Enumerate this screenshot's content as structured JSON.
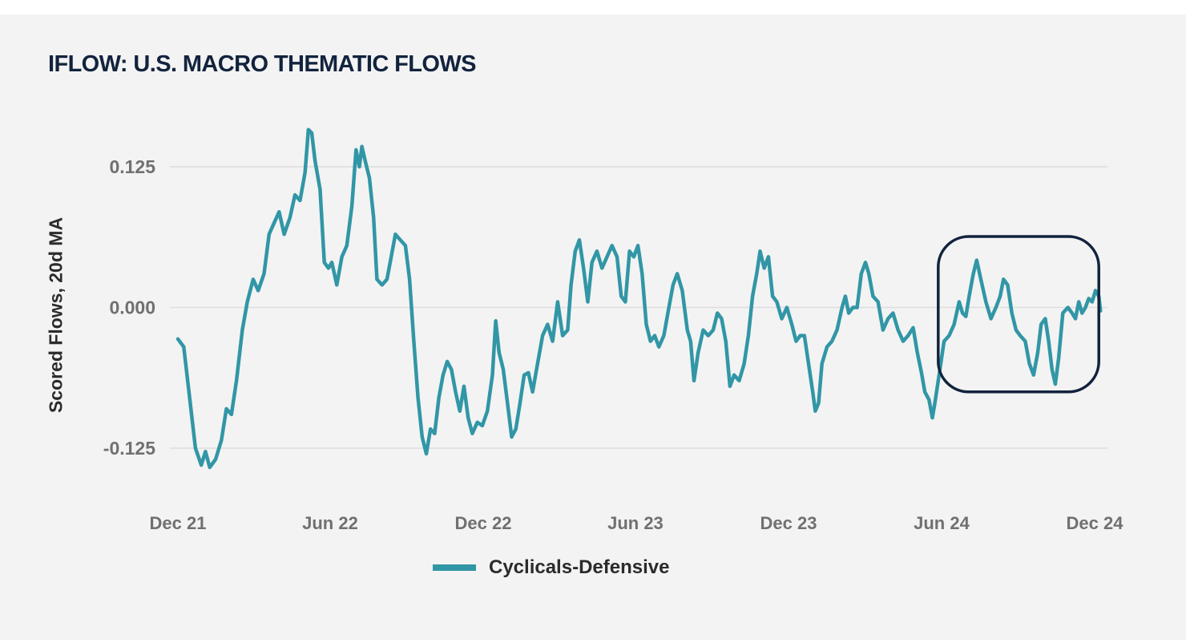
{
  "chart_data": {
    "type": "line",
    "title": "IFLOW: U.S. MACRO THEMATIC FLOWS",
    "ylabel": "Scored Flows, 20d MA",
    "xlabel": "",
    "ylim": [
      -0.16,
      0.16
    ],
    "yticks": [
      0.125,
      0.0,
      -0.125
    ],
    "ytick_labels": [
      "0.125",
      "0.000",
      "-0.125"
    ],
    "xticks": [
      {
        "date": "2021-12-01",
        "label": "Dec 21"
      },
      {
        "date": "2022-06-01",
        "label": "Jun 22"
      },
      {
        "date": "2022-12-01",
        "label": "Dec 22"
      },
      {
        "date": "2023-06-01",
        "label": "Jun 23"
      },
      {
        "date": "2023-12-01",
        "label": "Dec 23"
      },
      {
        "date": "2024-06-01",
        "label": "Jun 24"
      },
      {
        "date": "2024-12-01",
        "label": "Dec 24"
      }
    ],
    "grid": true,
    "legend_position": "bottom",
    "highlight": {
      "x_range": [
        "2024-05-28",
        "2024-12-06"
      ],
      "y_range": [
        -0.075,
        0.063
      ]
    },
    "colors": {
      "series": "#3196a6",
      "highlight": "#12233d",
      "grid": "#dddddd"
    },
    "series": [
      {
        "name": "Cyclicals-Defensive",
        "points": [
          [
            "2021-12-01",
            -0.028
          ],
          [
            "2021-12-08",
            -0.035
          ],
          [
            "2021-12-15",
            -0.08
          ],
          [
            "2021-12-22",
            -0.125
          ],
          [
            "2021-12-29",
            -0.14
          ],
          [
            "2022-01-03",
            -0.128
          ],
          [
            "2022-01-08",
            -0.142
          ],
          [
            "2022-01-15",
            -0.135
          ],
          [
            "2022-01-22",
            -0.118
          ],
          [
            "2022-01-28",
            -0.09
          ],
          [
            "2022-02-03",
            -0.095
          ],
          [
            "2022-02-09",
            -0.065
          ],
          [
            "2022-02-16",
            -0.02
          ],
          [
            "2022-02-22",
            0.005
          ],
          [
            "2022-03-01",
            0.025
          ],
          [
            "2022-03-07",
            0.015
          ],
          [
            "2022-03-14",
            0.03
          ],
          [
            "2022-03-20",
            0.065
          ],
          [
            "2022-03-26",
            0.075
          ],
          [
            "2022-04-01",
            0.085
          ],
          [
            "2022-04-07",
            0.065
          ],
          [
            "2022-04-14",
            0.08
          ],
          [
            "2022-04-20",
            0.1
          ],
          [
            "2022-04-26",
            0.095
          ],
          [
            "2022-05-02",
            0.12
          ],
          [
            "2022-05-06",
            0.158
          ],
          [
            "2022-05-10",
            0.155
          ],
          [
            "2022-05-14",
            0.13
          ],
          [
            "2022-05-20",
            0.105
          ],
          [
            "2022-05-25",
            0.04
          ],
          [
            "2022-05-30",
            0.035
          ],
          [
            "2022-06-03",
            0.04
          ],
          [
            "2022-06-09",
            0.02
          ],
          [
            "2022-06-15",
            0.045
          ],
          [
            "2022-06-21",
            0.055
          ],
          [
            "2022-06-27",
            0.09
          ],
          [
            "2022-07-02",
            0.14
          ],
          [
            "2022-07-06",
            0.125
          ],
          [
            "2022-07-09",
            0.143
          ],
          [
            "2022-07-13",
            0.13
          ],
          [
            "2022-07-18",
            0.115
          ],
          [
            "2022-07-23",
            0.08
          ],
          [
            "2022-07-27",
            0.025
          ],
          [
            "2022-08-02",
            0.02
          ],
          [
            "2022-08-08",
            0.025
          ],
          [
            "2022-08-13",
            0.045
          ],
          [
            "2022-08-18",
            0.065
          ],
          [
            "2022-08-24",
            0.06
          ],
          [
            "2022-08-30",
            0.055
          ],
          [
            "2022-09-04",
            0.025
          ],
          [
            "2022-09-09",
            -0.03
          ],
          [
            "2022-09-14",
            -0.08
          ],
          [
            "2022-09-19",
            -0.115
          ],
          [
            "2022-09-24",
            -0.13
          ],
          [
            "2022-09-29",
            -0.108
          ],
          [
            "2022-10-04",
            -0.112
          ],
          [
            "2022-10-09",
            -0.08
          ],
          [
            "2022-10-14",
            -0.06
          ],
          [
            "2022-10-19",
            -0.048
          ],
          [
            "2022-10-24",
            -0.055
          ],
          [
            "2022-10-29",
            -0.075
          ],
          [
            "2022-11-03",
            -0.092
          ],
          [
            "2022-11-08",
            -0.07
          ],
          [
            "2022-11-13",
            -0.098
          ],
          [
            "2022-11-18",
            -0.112
          ],
          [
            "2022-11-24",
            -0.102
          ],
          [
            "2022-11-30",
            -0.105
          ],
          [
            "2022-12-06",
            -0.092
          ],
          [
            "2022-12-12",
            -0.06
          ],
          [
            "2022-12-16",
            -0.012
          ],
          [
            "2022-12-20",
            -0.04
          ],
          [
            "2022-12-25",
            -0.055
          ],
          [
            "2022-12-30",
            -0.085
          ],
          [
            "2023-01-04",
            -0.115
          ],
          [
            "2023-01-09",
            -0.108
          ],
          [
            "2023-01-14",
            -0.085
          ],
          [
            "2023-01-19",
            -0.06
          ],
          [
            "2023-01-24",
            -0.058
          ],
          [
            "2023-01-29",
            -0.075
          ],
          [
            "2023-02-04",
            -0.05
          ],
          [
            "2023-02-10",
            -0.025
          ],
          [
            "2023-02-16",
            -0.015
          ],
          [
            "2023-02-22",
            -0.03
          ],
          [
            "2023-02-28",
            0.005
          ],
          [
            "2023-03-06",
            -0.025
          ],
          [
            "2023-03-12",
            -0.02
          ],
          [
            "2023-03-16",
            0.02
          ],
          [
            "2023-03-21",
            0.05
          ],
          [
            "2023-03-26",
            0.06
          ],
          [
            "2023-03-31",
            0.035
          ],
          [
            "2023-04-05",
            0.005
          ],
          [
            "2023-04-10",
            0.04
          ],
          [
            "2023-04-16",
            0.05
          ],
          [
            "2023-04-22",
            0.035
          ],
          [
            "2023-04-28",
            0.045
          ],
          [
            "2023-05-04",
            0.055
          ],
          [
            "2023-05-10",
            0.045
          ],
          [
            "2023-05-15",
            0.01
          ],
          [
            "2023-05-20",
            0.005
          ],
          [
            "2023-05-25",
            0.05
          ],
          [
            "2023-05-30",
            0.045
          ],
          [
            "2023-06-04",
            0.055
          ],
          [
            "2023-06-09",
            0.03
          ],
          [
            "2023-06-14",
            -0.015
          ],
          [
            "2023-06-19",
            -0.03
          ],
          [
            "2023-06-24",
            -0.025
          ],
          [
            "2023-06-29",
            -0.035
          ],
          [
            "2023-07-05",
            -0.025
          ],
          [
            "2023-07-11",
            0.0
          ],
          [
            "2023-07-16",
            0.02
          ],
          [
            "2023-07-21",
            0.03
          ],
          [
            "2023-07-27",
            0.015
          ],
          [
            "2023-08-02",
            -0.02
          ],
          [
            "2023-08-06",
            -0.03
          ],
          [
            "2023-08-10",
            -0.065
          ],
          [
            "2023-08-15",
            -0.04
          ],
          [
            "2023-08-21",
            -0.02
          ],
          [
            "2023-08-27",
            -0.025
          ],
          [
            "2023-09-02",
            -0.02
          ],
          [
            "2023-09-07",
            -0.005
          ],
          [
            "2023-09-12",
            -0.01
          ],
          [
            "2023-09-17",
            -0.03
          ],
          [
            "2023-09-22",
            -0.07
          ],
          [
            "2023-09-27",
            -0.06
          ],
          [
            "2023-10-03",
            -0.065
          ],
          [
            "2023-10-09",
            -0.05
          ],
          [
            "2023-10-14",
            -0.025
          ],
          [
            "2023-10-19",
            0.01
          ],
          [
            "2023-10-24",
            0.03
          ],
          [
            "2023-10-28",
            0.05
          ],
          [
            "2023-11-02",
            0.035
          ],
          [
            "2023-11-07",
            0.045
          ],
          [
            "2023-11-12",
            0.01
          ],
          [
            "2023-11-17",
            0.005
          ],
          [
            "2023-11-23",
            -0.01
          ],
          [
            "2023-11-29",
            0.0
          ],
          [
            "2023-12-05",
            -0.015
          ],
          [
            "2023-12-10",
            -0.03
          ],
          [
            "2023-12-15",
            -0.025
          ],
          [
            "2023-12-20",
            -0.025
          ],
          [
            "2023-12-25",
            -0.05
          ],
          [
            "2023-12-30",
            -0.075
          ],
          [
            "2024-01-02",
            -0.092
          ],
          [
            "2024-01-06",
            -0.085
          ],
          [
            "2024-01-10",
            -0.05
          ],
          [
            "2024-01-16",
            -0.035
          ],
          [
            "2024-01-22",
            -0.03
          ],
          [
            "2024-01-28",
            -0.02
          ],
          [
            "2024-02-03",
            0.0
          ],
          [
            "2024-02-07",
            0.01
          ],
          [
            "2024-02-11",
            -0.005
          ],
          [
            "2024-02-16",
            0.0
          ],
          [
            "2024-02-21",
            0.0
          ],
          [
            "2024-02-26",
            0.03
          ],
          [
            "2024-03-02",
            0.04
          ],
          [
            "2024-03-06",
            0.03
          ],
          [
            "2024-03-11",
            0.01
          ],
          [
            "2024-03-17",
            0.005
          ],
          [
            "2024-03-23",
            -0.02
          ],
          [
            "2024-03-29",
            -0.01
          ],
          [
            "2024-04-04",
            -0.005
          ],
          [
            "2024-04-10",
            -0.02
          ],
          [
            "2024-04-16",
            -0.03
          ],
          [
            "2024-04-22",
            -0.025
          ],
          [
            "2024-04-28",
            -0.018
          ],
          [
            "2024-05-03",
            -0.04
          ],
          [
            "2024-05-08",
            -0.058
          ],
          [
            "2024-05-12",
            -0.075
          ],
          [
            "2024-05-17",
            -0.082
          ],
          [
            "2024-05-21",
            -0.098
          ],
          [
            "2024-05-24",
            -0.085
          ],
          [
            "2024-05-29",
            -0.06
          ],
          [
            "2024-06-04",
            -0.03
          ],
          [
            "2024-06-10",
            -0.025
          ],
          [
            "2024-06-16",
            -0.015
          ],
          [
            "2024-06-22",
            0.005
          ],
          [
            "2024-06-26",
            -0.005
          ],
          [
            "2024-06-30",
            -0.008
          ],
          [
            "2024-07-04",
            0.01
          ],
          [
            "2024-07-09",
            0.03
          ],
          [
            "2024-07-13",
            0.042
          ],
          [
            "2024-07-18",
            0.025
          ],
          [
            "2024-07-24",
            0.005
          ],
          [
            "2024-07-30",
            -0.01
          ],
          [
            "2024-08-05",
            0.0
          ],
          [
            "2024-08-10",
            0.01
          ],
          [
            "2024-08-14",
            0.025
          ],
          [
            "2024-08-19",
            0.02
          ],
          [
            "2024-08-24",
            -0.005
          ],
          [
            "2024-08-29",
            -0.02
          ],
          [
            "2024-09-03",
            -0.025
          ],
          [
            "2024-09-09",
            -0.03
          ],
          [
            "2024-09-14",
            -0.05
          ],
          [
            "2024-09-19",
            -0.06
          ],
          [
            "2024-09-24",
            -0.04
          ],
          [
            "2024-09-28",
            -0.015
          ],
          [
            "2024-10-03",
            -0.01
          ],
          [
            "2024-10-07",
            -0.03
          ],
          [
            "2024-10-11",
            -0.055
          ],
          [
            "2024-10-15",
            -0.068
          ],
          [
            "2024-10-19",
            -0.045
          ],
          [
            "2024-10-24",
            -0.005
          ],
          [
            "2024-10-30",
            0.0
          ],
          [
            "2024-11-04",
            -0.005
          ],
          [
            "2024-11-08",
            -0.01
          ],
          [
            "2024-11-12",
            0.005
          ],
          [
            "2024-11-16",
            -0.005
          ],
          [
            "2024-11-20",
            0.0
          ],
          [
            "2024-11-24",
            0.008
          ],
          [
            "2024-11-28",
            0.005
          ],
          [
            "2024-12-02",
            0.015
          ],
          [
            "2024-12-06",
            0.01
          ],
          [
            "2024-12-08",
            -0.003
          ]
        ]
      }
    ]
  }
}
